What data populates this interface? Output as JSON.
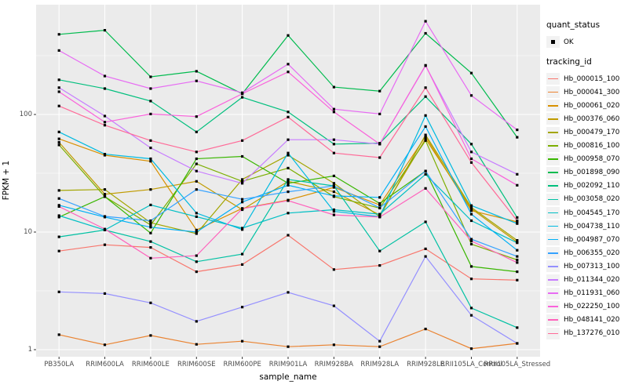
{
  "chart_data": {
    "type": "line",
    "title": "",
    "xlabel": "sample_name",
    "ylabel": "FPKM + 1",
    "y_scale": "log10",
    "y_ticks": [
      1,
      10,
      100
    ],
    "minor_gridlines_log": [
      0.5,
      1.5,
      2.5
    ],
    "grid": true,
    "legend_position": "right",
    "point_color": "#000000",
    "categories": [
      "PB350LA",
      "RRIM600LA",
      "RRIM600LE",
      "RRIM600SE",
      "RRIM600PE",
      "RRIM901LA",
      "RRIM928BA",
      "RRIM928LA",
      "RRIM928LE",
      "RRII105LA_Control",
      "RRII105LA_Stressed"
    ],
    "series": [
      {
        "name": "Hb_000015_100",
        "color": "#F8766D",
        "values": [
          6.9,
          7.8,
          7.4,
          4.6,
          5.3,
          9.4,
          4.8,
          5.2,
          7.2,
          4.0,
          3.9
        ]
      },
      {
        "name": "Hb_000041_300",
        "color": "#EA8331",
        "values": [
          1.34,
          1.1,
          1.32,
          1.11,
          1.18,
          1.06,
          1.1,
          1.06,
          1.5,
          1.02,
          1.13
        ]
      },
      {
        "name": "Hb_000061_020",
        "color": "#D89000",
        "values": [
          62,
          45,
          40,
          10.4,
          15.9,
          18.7,
          24,
          17,
          65,
          15.2,
          12.2
        ]
      },
      {
        "name": "Hb_000376_060",
        "color": "#C09B00",
        "values": [
          58,
          21,
          23,
          27,
          15.5,
          27,
          22,
          14,
          62,
          15.8,
          8.2
        ]
      },
      {
        "name": "Hb_000479_170",
        "color": "#A3A500",
        "values": [
          22.6,
          23,
          12,
          9.7,
          28,
          45,
          26,
          13.5,
          67,
          16.2,
          8.5
        ]
      },
      {
        "name": "Hb_000816_100",
        "color": "#7CAE00",
        "values": [
          55,
          20,
          11.5,
          38,
          27,
          35,
          20,
          16,
          60,
          7.9,
          5.8
        ]
      },
      {
        "name": "Hb_000958_070",
        "color": "#39B600",
        "values": [
          13.4,
          20,
          9.8,
          42,
          44,
          26,
          30,
          17.5,
          33,
          5.1,
          4.6
        ]
      },
      {
        "name": "Hb_001898_090",
        "color": "#00BB4E",
        "values": [
          480,
          520,
          209,
          233,
          150,
          470,
          171,
          158,
          490,
          225,
          64
        ]
      },
      {
        "name": "Hb_002092_110",
        "color": "#00BF7D",
        "values": [
          197,
          166,
          130,
          71,
          140,
          105,
          56,
          57,
          142,
          56,
          13.3
        ]
      },
      {
        "name": "Hb_003058_020",
        "color": "#00C1A3",
        "values": [
          9.1,
          10.4,
          8.3,
          5.6,
          6.5,
          28,
          24.7,
          6.9,
          12.2,
          2.26,
          1.54
        ]
      },
      {
        "name": "Hb_004545_170",
        "color": "#00BFC4",
        "values": [
          13.8,
          10.4,
          17,
          13.5,
          10.8,
          14.5,
          15.5,
          14.2,
          31,
          12.5,
          8.1
        ]
      },
      {
        "name": "Hb_004738_110",
        "color": "#00BAE0",
        "values": [
          71,
          46,
          42,
          14.5,
          10.5,
          47,
          15,
          13.5,
          98,
          16.8,
          11.8
        ]
      },
      {
        "name": "Hb_004987_070",
        "color": "#00B0F6",
        "values": [
          16.9,
          13.4,
          11,
          10,
          18,
          25,
          20.3,
          19.7,
          79,
          14.2,
          7.0
        ]
      },
      {
        "name": "Hb_006355_020",
        "color": "#35A2FF",
        "values": [
          19.3,
          13.6,
          12.5,
          23,
          19,
          22,
          24.7,
          16.1,
          33,
          8.7,
          6.2
        ]
      },
      {
        "name": "Hb_007313_100",
        "color": "#9590FF",
        "values": [
          3.1,
          3.0,
          2.5,
          1.74,
          2.3,
          3.07,
          2.36,
          1.18,
          6.2,
          1.96,
          1.13
        ]
      },
      {
        "name": "Hb_011344_020",
        "color": "#C77CFF",
        "values": [
          169,
          97,
          52,
          33,
          26,
          61,
          61,
          56,
          260,
          48,
          31
        ]
      },
      {
        "name": "Hb_011931_060",
        "color": "#E76BF3",
        "values": [
          350,
          212,
          166,
          193,
          153,
          268,
          111,
          101,
          620,
          145,
          74
        ]
      },
      {
        "name": "Hb_022250_100",
        "color": "#FA62DB",
        "values": [
          156,
          86,
          101,
          96,
          150,
          230,
          105,
          56,
          262,
          42,
          25
        ]
      },
      {
        "name": "Hb_048141_020",
        "color": "#FF62BC",
        "values": [
          16.5,
          10.6,
          6.0,
          6.3,
          15.8,
          18.5,
          14,
          13.4,
          23.5,
          8.4,
          5.5
        ]
      },
      {
        "name": "Hb_137276_010",
        "color": "#FF6A98",
        "values": [
          118,
          81,
          60,
          48,
          60,
          95,
          47,
          43,
          169,
          39,
          12.5
        ]
      }
    ]
  },
  "legend": {
    "quant_status_title": "quant_status",
    "quant_status_items": [
      {
        "label": "OK",
        "symbol": "black-point"
      }
    ],
    "tracking_id_title": "tracking_id"
  },
  "theme": {
    "panel_bg": "#EBEBEB",
    "grid_color": "#FFFFFF",
    "legend_key_bg": "#F2F2F2",
    "tick_color": "#333333",
    "tick_label_color": "#4D4D4D",
    "axis_title_color": "#000000"
  }
}
